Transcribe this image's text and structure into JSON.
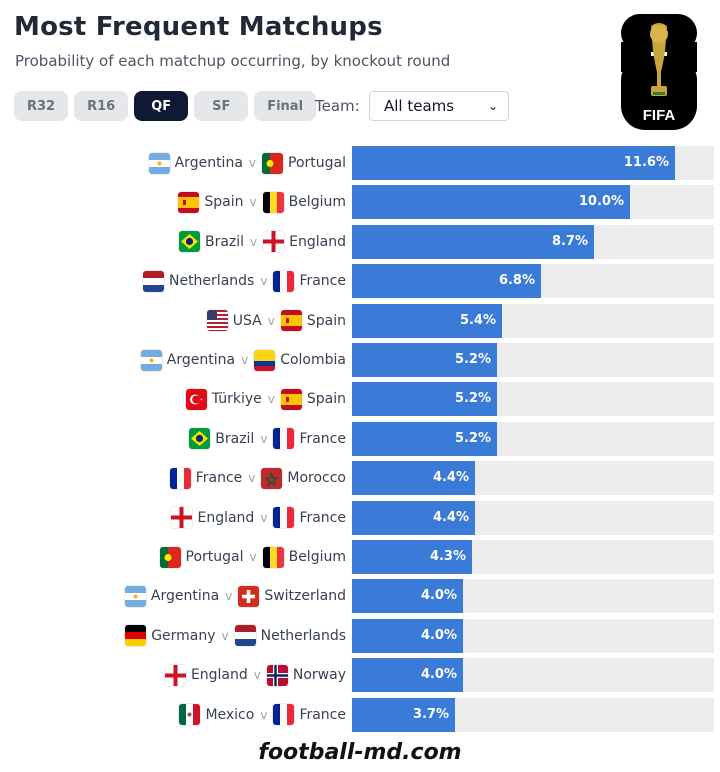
{
  "header": {
    "title": "Most Frequent Matchups",
    "subtitle": "Probability of each matchup occurring, by knockout round"
  },
  "tabs": [
    {
      "label": "R32",
      "active": false
    },
    {
      "label": "R16",
      "active": false
    },
    {
      "label": "QF",
      "active": true
    },
    {
      "label": "SF",
      "active": false
    },
    {
      "label": "Final",
      "active": false
    }
  ],
  "team_filter": {
    "label": "Team:",
    "selected": "All teams"
  },
  "logo": {
    "text": "FIFA"
  },
  "footer": {
    "watermark": "football-md.com"
  },
  "colors": {
    "bar": "#3b7bd8",
    "track": "#ececec",
    "active_tab": "#0f1933"
  },
  "chart_data": {
    "type": "bar",
    "orientation": "horizontal",
    "unit": "%",
    "xlim": [
      0,
      13
    ],
    "rows": [
      {
        "team_a": "Argentina",
        "team_b": "Portugal",
        "value": 11.6,
        "label": "11.6%",
        "flag_a": "argentina",
        "flag_b": "portugal"
      },
      {
        "team_a": "Spain",
        "team_b": "Belgium",
        "value": 10.0,
        "label": "10.0%",
        "flag_a": "spain",
        "flag_b": "belgium"
      },
      {
        "team_a": "Brazil",
        "team_b": "England",
        "value": 8.7,
        "label": "8.7%",
        "flag_a": "brazil",
        "flag_b": "england"
      },
      {
        "team_a": "Netherlands",
        "team_b": "France",
        "value": 6.8,
        "label": "6.8%",
        "flag_a": "netherlands",
        "flag_b": "france"
      },
      {
        "team_a": "USA",
        "team_b": "Spain",
        "value": 5.4,
        "label": "5.4%",
        "flag_a": "usa",
        "flag_b": "spain"
      },
      {
        "team_a": "Argentina",
        "team_b": "Colombia",
        "value": 5.2,
        "label": "5.2%",
        "flag_a": "argentina",
        "flag_b": "colombia"
      },
      {
        "team_a": "Türkiye",
        "team_b": "Spain",
        "value": 5.2,
        "label": "5.2%",
        "flag_a": "turkiye",
        "flag_b": "spain"
      },
      {
        "team_a": "Brazil",
        "team_b": "France",
        "value": 5.2,
        "label": "5.2%",
        "flag_a": "brazil",
        "flag_b": "france"
      },
      {
        "team_a": "France",
        "team_b": "Morocco",
        "value": 4.4,
        "label": "4.4%",
        "flag_a": "france",
        "flag_b": "morocco"
      },
      {
        "team_a": "England",
        "team_b": "France",
        "value": 4.4,
        "label": "4.4%",
        "flag_a": "england",
        "flag_b": "france"
      },
      {
        "team_a": "Portugal",
        "team_b": "Belgium",
        "value": 4.3,
        "label": "4.3%",
        "flag_a": "portugal",
        "flag_b": "belgium"
      },
      {
        "team_a": "Argentina",
        "team_b": "Switzerland",
        "value": 4.0,
        "label": "4.0%",
        "flag_a": "argentina",
        "flag_b": "switzerland"
      },
      {
        "team_a": "Germany",
        "team_b": "Netherlands",
        "value": 4.0,
        "label": "4.0%",
        "flag_a": "germany",
        "flag_b": "netherlands"
      },
      {
        "team_a": "England",
        "team_b": "Norway",
        "value": 4.0,
        "label": "4.0%",
        "flag_a": "england",
        "flag_b": "norway"
      },
      {
        "team_a": "Mexico",
        "team_b": "France",
        "value": 3.7,
        "label": "3.7%",
        "flag_a": "mexico",
        "flag_b": "france"
      }
    ],
    "separator": "v"
  }
}
